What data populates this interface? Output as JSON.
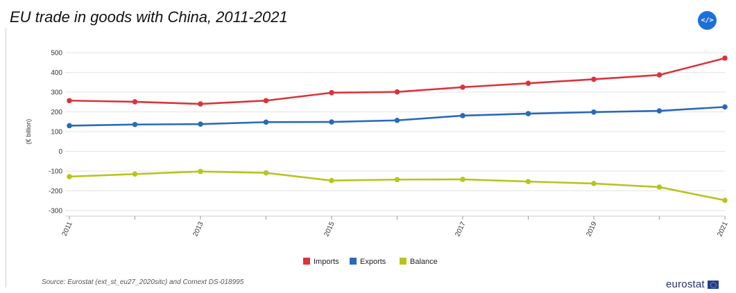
{
  "header": {
    "title": "EU trade in goods with China, 2011-2021",
    "embed_icon": "code-embed-icon",
    "embed_label": "</>"
  },
  "footer": {
    "source": "Source: Eurostat (ext_st_eu27_2020sitc) and Comext DS-018995",
    "logo_text": "eurostat",
    "logo_icon": "eu-flag-icon"
  },
  "chart_data": {
    "type": "line",
    "title": "EU trade in goods with China, 2011-2021",
    "ylabel": "(€ billion)",
    "xlabel": "",
    "x": [
      2011,
      2012,
      2013,
      2014,
      2015,
      2016,
      2017,
      2018,
      2019,
      2020,
      2021
    ],
    "x_tick_labels": [
      "2011",
      "2013",
      "2015",
      "2017",
      "2019",
      "2021"
    ],
    "ylim": [
      -300,
      500
    ],
    "y_ticks": [
      -300,
      -200,
      -100,
      0,
      100,
      200,
      300,
      400,
      500
    ],
    "grid": true,
    "legend_position": "bottom-center",
    "series": [
      {
        "name": "Imports",
        "color": "#d9343c",
        "values": [
          257,
          251,
          240,
          257,
          297,
          301,
          325,
          345,
          365,
          387,
          472
        ]
      },
      {
        "name": "Exports",
        "color": "#2a69b8",
        "values": [
          130,
          136,
          138,
          148,
          149,
          157,
          181,
          191,
          199,
          205,
          225
        ]
      },
      {
        "name": "Balance",
        "color": "#b7c41f",
        "values": [
          -128,
          -115,
          -102,
          -109,
          -148,
          -143,
          -142,
          -153,
          -163,
          -181,
          -248
        ]
      }
    ]
  }
}
